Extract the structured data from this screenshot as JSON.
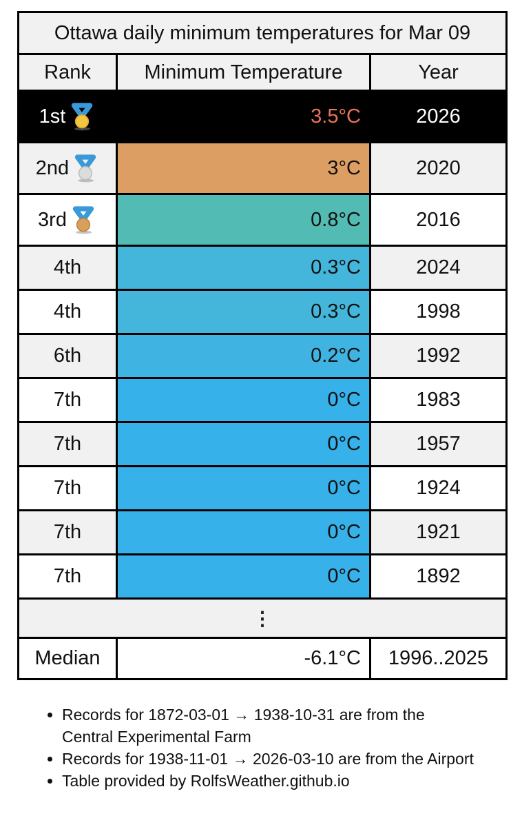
{
  "table": {
    "title": "Ottawa daily minimum temperatures for Mar 09",
    "columns": {
      "rank": "Rank",
      "temp": "Minimum Temperature",
      "year": "Year"
    },
    "rows": [
      {
        "rank": "1st",
        "medal": "gold",
        "temp": "3.5°C",
        "year": "2026",
        "row_bg": "#000000",
        "row_fg": "#ffffff",
        "temp_bg": "#000000",
        "temp_fg": "#e8745a"
      },
      {
        "rank": "2nd",
        "medal": "silver",
        "temp": "3°C",
        "year": "2020",
        "temp_bg": "#dd9e63"
      },
      {
        "rank": "3rd",
        "medal": "bronze",
        "temp": "0.8°C",
        "year": "2016",
        "temp_bg": "#52bbb3"
      },
      {
        "rank": "4th",
        "medal": null,
        "temp": "0.3°C",
        "year": "2024",
        "temp_bg": "#44b6dc"
      },
      {
        "rank": "4th",
        "medal": null,
        "temp": "0.3°C",
        "year": "1998",
        "temp_bg": "#44b6dc"
      },
      {
        "rank": "6th",
        "medal": null,
        "temp": "0.2°C",
        "year": "1992",
        "temp_bg": "#3fb4e2"
      },
      {
        "rank": "7th",
        "medal": null,
        "temp": "0°C",
        "year": "1983",
        "temp_bg": "#36b1ea"
      },
      {
        "rank": "7th",
        "medal": null,
        "temp": "0°C",
        "year": "1957",
        "temp_bg": "#36b1ea"
      },
      {
        "rank": "7th",
        "medal": null,
        "temp": "0°C",
        "year": "1924",
        "temp_bg": "#36b1ea"
      },
      {
        "rank": "7th",
        "medal": null,
        "temp": "0°C",
        "year": "1921",
        "temp_bg": "#36b1ea"
      },
      {
        "rank": "7th",
        "medal": null,
        "temp": "0°C",
        "year": "1892",
        "temp_bg": "#36b1ea"
      }
    ],
    "ellipsis": "⋮",
    "median_row": {
      "label": "Median",
      "temp": "-6.1°C",
      "year": "1996..2025"
    }
  },
  "notes": [
    "Records for 1872-03-01 → 1938-10-31 are from the Central Experimental Farm",
    "Records for 1938-11-01 → 2026-03-10 are from the Airport",
    "Table provided by RolfsWeather.github.io"
  ],
  "colors": {
    "stripe": "#f1f1f1",
    "first_row_bg": "#000000",
    "first_row_temp_text": "#e8745a",
    "ribbon": "#3a9ad9",
    "medals": {
      "gold": {
        "fill": "#f2c63f",
        "edge": "#d9a72e"
      },
      "silver": {
        "fill": "#dcdcdc",
        "edge": "#bdbdbd"
      },
      "bronze": {
        "fill": "#d9a05b",
        "edge": "#bc7f41"
      }
    }
  },
  "chart_data": {
    "type": "table",
    "title": "Ottawa daily minimum temperatures for Mar 09",
    "columns": [
      "Rank",
      "Minimum Temperature",
      "Year"
    ],
    "rows": [
      {
        "rank": 1,
        "temp_c": 3.5,
        "year": 2026
      },
      {
        "rank": 2,
        "temp_c": 3,
        "year": 2020
      },
      {
        "rank": 3,
        "temp_c": 0.8,
        "year": 2016
      },
      {
        "rank": 4,
        "temp_c": 0.3,
        "year": 2024
      },
      {
        "rank": 4,
        "temp_c": 0.3,
        "year": 1998
      },
      {
        "rank": 6,
        "temp_c": 0.2,
        "year": 1992
      },
      {
        "rank": 7,
        "temp_c": 0,
        "year": 1983
      },
      {
        "rank": 7,
        "temp_c": 0,
        "year": 1957
      },
      {
        "rank": 7,
        "temp_c": 0,
        "year": 1924
      },
      {
        "rank": 7,
        "temp_c": 0,
        "year": 1921
      },
      {
        "rank": 7,
        "temp_c": 0,
        "year": 1892
      }
    ],
    "median": {
      "temp_c": -6.1,
      "period": "1996..2025"
    }
  }
}
